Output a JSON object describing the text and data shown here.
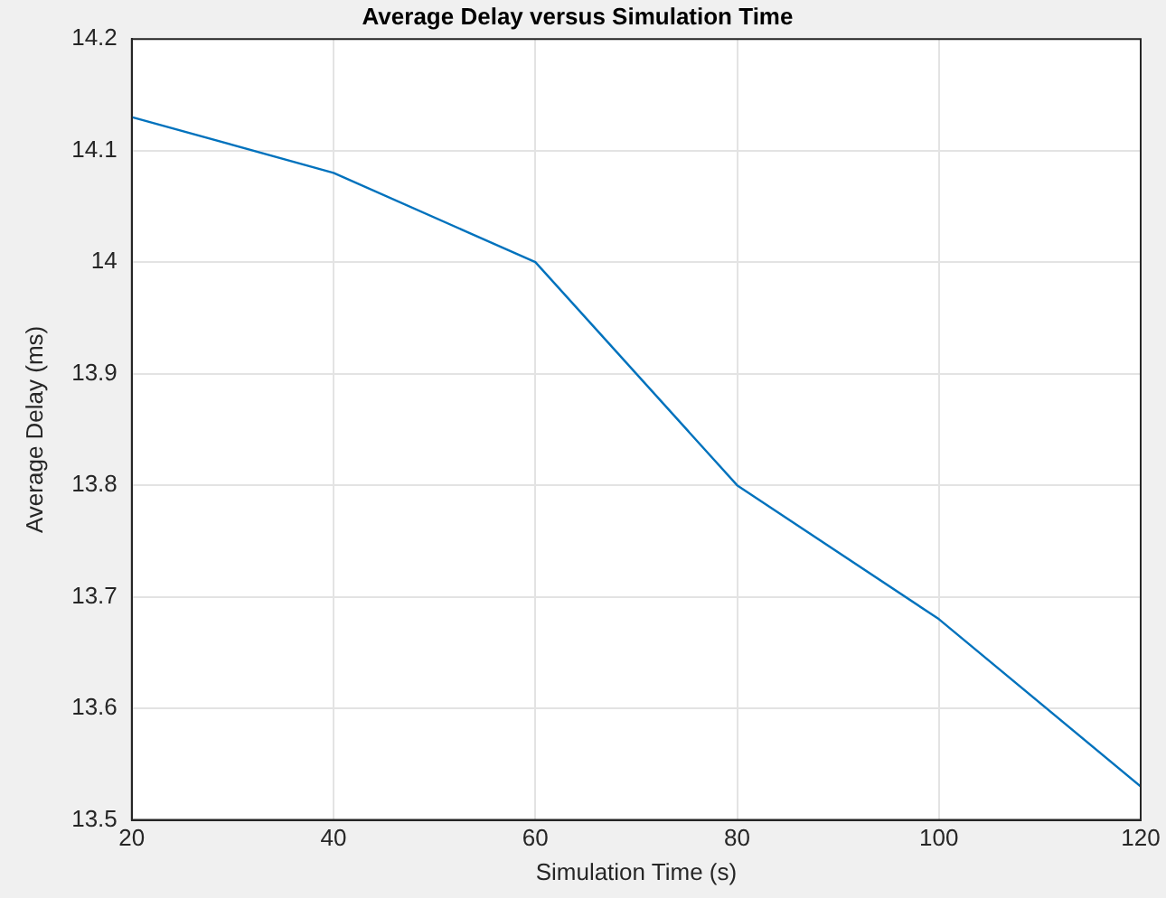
{
  "chart_data": {
    "type": "line",
    "title": "Average Delay versus Simulation Time",
    "xlabel": "Simulation Time (s)",
    "ylabel": "Average Delay (ms)",
    "x": [
      20,
      40,
      60,
      80,
      100,
      120
    ],
    "series": [
      {
        "color": "#0072bd",
        "values": [
          14.13,
          14.08,
          14.0,
          13.8,
          13.68,
          13.53
        ]
      }
    ],
    "xlim": [
      20,
      120
    ],
    "xticks": [
      20,
      40,
      60,
      80,
      100,
      120
    ],
    "ylim": [
      13.5,
      14.2
    ],
    "yticks": [
      13.5,
      13.6,
      13.7,
      13.8,
      13.9,
      14,
      14.1,
      14.2
    ],
    "grid": true,
    "legend": false,
    "marker": "none",
    "line_style": "solid"
  }
}
